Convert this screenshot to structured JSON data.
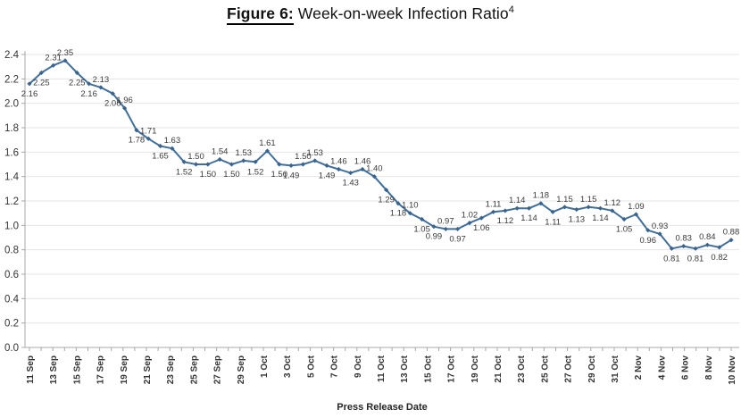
{
  "title": {
    "prefix": "Figure 6:",
    "main": " Week-on-week Infection Ratio",
    "superscript": "4"
  },
  "chart_data": {
    "type": "line",
    "title": "Figure 6: Week-on-week Infection Ratio",
    "xlabel": "Press Release Date",
    "ylabel": "",
    "ylim": [
      0.0,
      2.4
    ],
    "grid": true,
    "legend": "none",
    "y_tick_labels": [
      "2.4",
      "2.2",
      "2.0",
      "1.8",
      "1.6",
      "1.4",
      "1.2",
      "1.0",
      "0.8",
      "0.6",
      "0.4",
      "0.2",
      "0.0"
    ],
    "x_tick_labels": [
      "11 Sep",
      "13 Sep",
      "15 Sep",
      "17 Sep",
      "19 Sep",
      "21 Sep",
      "23 Sep",
      "25 Sep",
      "27 Sep",
      "29 Sep",
      "1 Oct",
      "3 Oct",
      "5 Oct",
      "7 Oct",
      "9 Oct",
      "11 Oct",
      "13 Oct",
      "15 Oct",
      "17 Oct",
      "19 Oct",
      "21 Oct",
      "23 Oct",
      "25 Oct",
      "27 Oct",
      "29 Oct",
      "31 Oct",
      "2 Nov",
      "4 Nov",
      "6 Nov",
      "8 Nov",
      "10 Nov"
    ],
    "series": [
      {
        "name": "Week-on-week Infection Ratio",
        "values": [
          2.16,
          2.25,
          2.31,
          2.35,
          2.25,
          2.16,
          2.13,
          2.08,
          1.96,
          1.78,
          1.71,
          1.65,
          1.63,
          1.52,
          1.5,
          1.5,
          1.54,
          1.5,
          1.53,
          1.52,
          1.61,
          1.5,
          1.49,
          1.5,
          1.53,
          1.49,
          1.46,
          1.43,
          1.46,
          1.4,
          1.29,
          1.18,
          1.1,
          1.05,
          0.99,
          0.97,
          0.97,
          1.02,
          1.06,
          1.11,
          1.12,
          1.14,
          1.14,
          1.18,
          1.11,
          1.15,
          1.13,
          1.15,
          1.14,
          1.12,
          1.05,
          1.09,
          0.96,
          0.93,
          0.81,
          0.83,
          0.81,
          0.84,
          0.82,
          0.88
        ],
        "label_positions": [
          "below",
          "below",
          "above",
          "above",
          "below",
          "below",
          "above",
          "below",
          "above",
          "below",
          "above",
          "below",
          "above",
          "below",
          "above",
          "below",
          "above",
          "below",
          "above",
          "below",
          "above",
          "below",
          "below",
          "above",
          "above",
          "below",
          "above",
          "below",
          "above",
          "above",
          "below",
          "below",
          "above",
          "below",
          "below",
          "above",
          "below",
          "above",
          "below",
          "above",
          "below",
          "above",
          "below",
          "above",
          "below",
          "above",
          "below",
          "above",
          "below",
          "above",
          "below",
          "above",
          "below",
          "above",
          "below",
          "above",
          "below",
          "above",
          "below",
          "above"
        ]
      }
    ],
    "colors": {
      "line": "#3F6F9F",
      "marker": "#38648f",
      "grid": "#e4e4e4",
      "axis": "#a8a8a8",
      "data_label": "#3a3a3a",
      "tick_label": "#333333"
    }
  }
}
